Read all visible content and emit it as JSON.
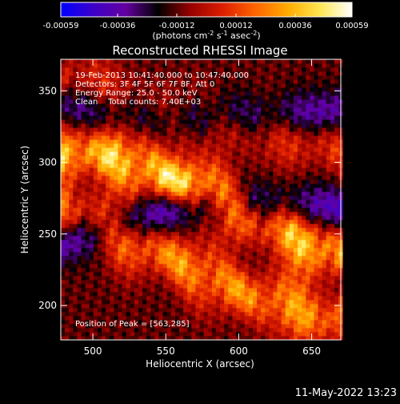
{
  "colorbar": {
    "ticks": [
      "-0.00059",
      "-0.00036",
      "-0.00012",
      "0.00012",
      "0.00036",
      "0.00059"
    ],
    "unit_parts": [
      "(photons cm",
      "-2",
      " s",
      "-1",
      " asec",
      "-2",
      ")"
    ],
    "min": -0.00059,
    "max": 0.00059,
    "colors": [
      "#0000ff",
      "#3c00c8",
      "#6400a0",
      "#000000",
      "#960000",
      "#dc1e00",
      "#ff6400",
      "#ffaa00",
      "#ffe650",
      "#ffffff"
    ]
  },
  "footer": {
    "timestamp": "11-May-2022 13:23"
  },
  "chart_data": {
    "type": "heatmap",
    "title": "Reconstructed RHESSI Image",
    "xlabel": "Heliocentric X (arcsec)",
    "ylabel": "Heliocentric Y (arcsec)",
    "xlim": [
      478,
      670
    ],
    "ylim": [
      176,
      372
    ],
    "xticks": [
      500,
      550,
      600,
      650
    ],
    "yticks": [
      200,
      250,
      300,
      350
    ],
    "info_lines": [
      "19-Feb-2013 10:41:40.000 to 10:47:40.000",
      "Detectors: 3F 4F 5F 6F 7F 8F, Att 0",
      "Energy Range: 25.0 - 50.0 keV",
      "Clean    Total counts: 7.40E+03"
    ],
    "peak_label": "Position of Peak = [563,285]",
    "peak": [
      563,
      285
    ],
    "value_range": [
      -0.00059,
      0.00059
    ],
    "bright_bands": [
      {
        "centerline": [
          [
            478,
            310
          ],
          [
            520,
            302
          ],
          [
            563,
            285
          ],
          [
            610,
            262
          ],
          [
            670,
            236
          ]
        ],
        "peak_value": 0.00059
      },
      {
        "centerline": [
          [
            478,
            268
          ],
          [
            520,
            250
          ],
          [
            563,
            228
          ],
          [
            610,
            206
          ],
          [
            670,
            188
          ]
        ],
        "peak_value": 0.00045
      },
      {
        "centerline": [
          [
            478,
            360
          ],
          [
            560,
            330
          ],
          [
            620,
            322
          ],
          [
            670,
            308
          ]
        ],
        "peak_value": 0.00025
      }
    ],
    "dark_bands": [
      {
        "centerline": [
          [
            478,
            245
          ],
          [
            560,
            270
          ],
          [
            670,
            268
          ]
        ],
        "min_value": -0.0005
      },
      {
        "centerline": [
          [
            478,
            340
          ],
          [
            560,
            330
          ],
          [
            670,
            335
          ]
        ],
        "min_value": -0.0004
      }
    ]
  }
}
